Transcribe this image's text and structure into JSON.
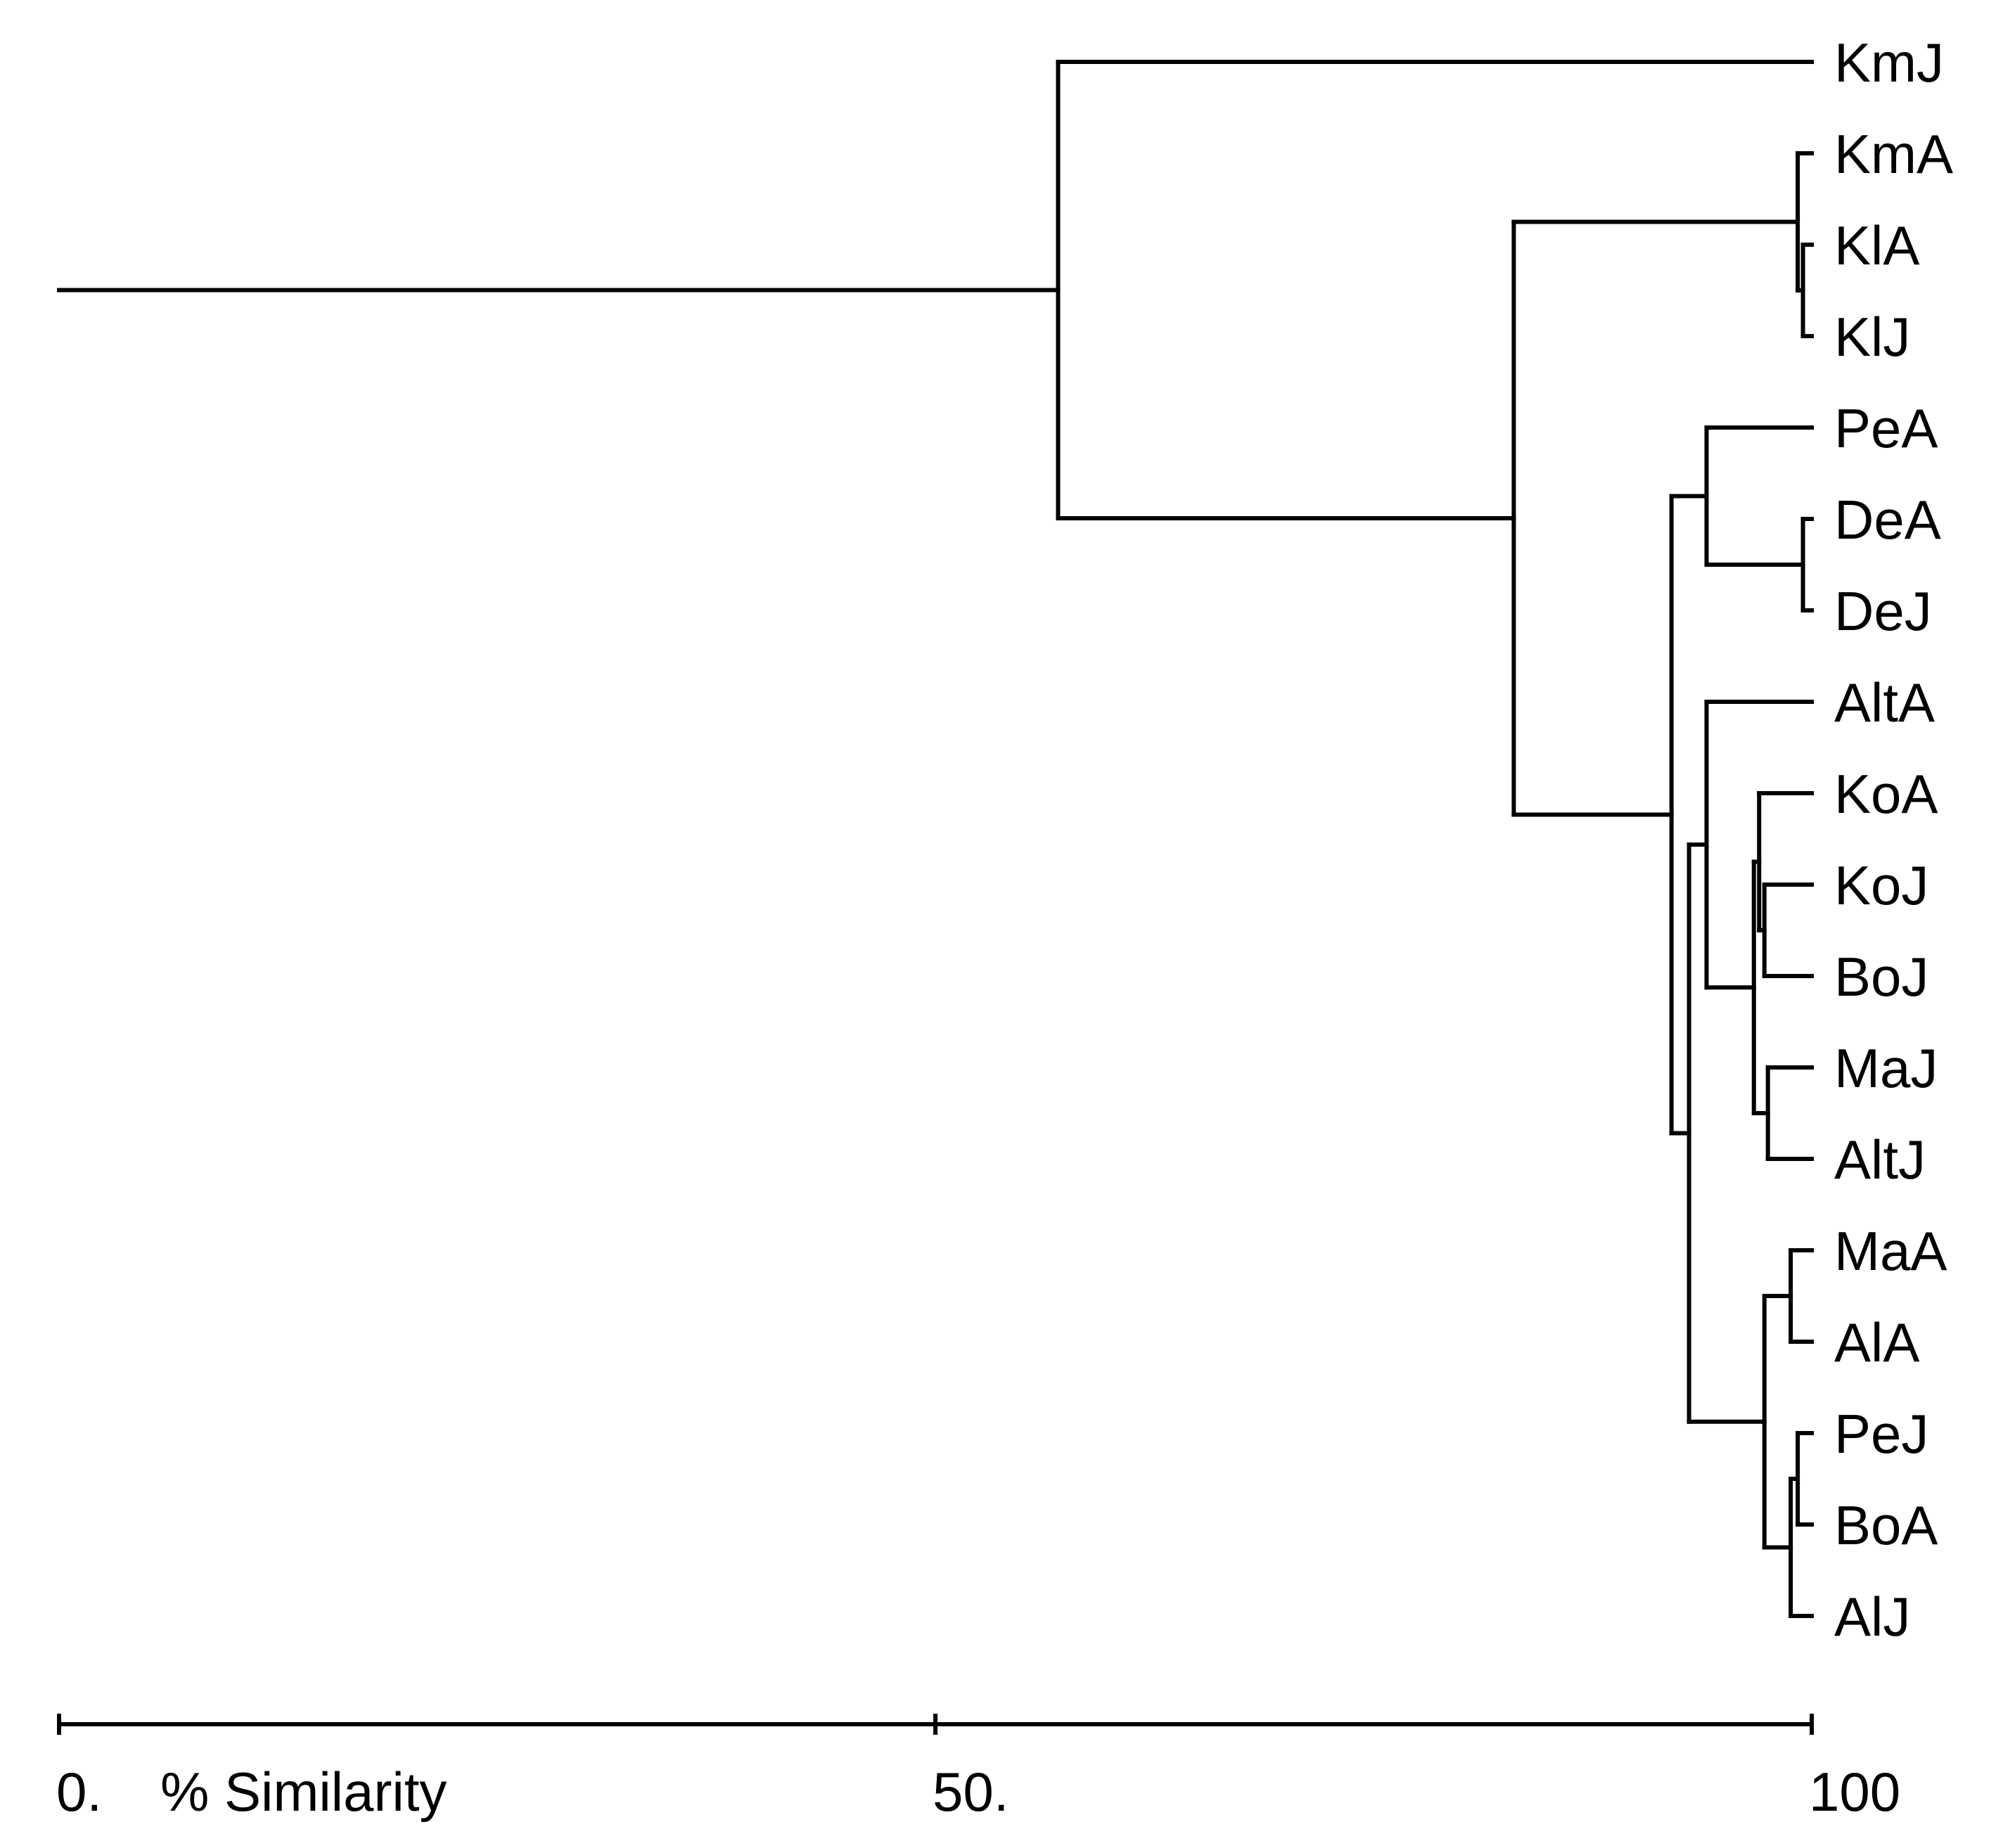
{
  "axis": {
    "label": "% Similarity",
    "ticks": [
      {
        "value": 0,
        "label": "0."
      },
      {
        "value": 50,
        "label": "50."
      },
      {
        "value": 100,
        "label": "100"
      }
    ]
  },
  "leaves": [
    "KmJ",
    "KmA",
    "KlA",
    "KlJ",
    "PeA",
    "DeA",
    "DeJ",
    "AltA",
    "KoA",
    "KoJ",
    "BoJ",
    "MaJ",
    "AltJ",
    "MaA",
    "AlA",
    "PeJ",
    "BoA",
    "AlJ"
  ],
  "tree": {
    "h": 0,
    "children": [
      {
        "h": 57,
        "children": [
          {
            "leaf": "KmJ"
          },
          {
            "h": 83,
            "children": [
              {
                "h": 99.2,
                "children": [
                  {
                    "leaf": "KmA"
                  },
                  {
                    "h": 99.5,
                    "children": [
                      {
                        "leaf": "KlA"
                      },
                      {
                        "leaf": "KlJ"
                      }
                    ]
                  }
                ]
              },
              {
                "h": 92,
                "children": [
                  {
                    "h": 94,
                    "children": [
                      {
                        "leaf": "PeA"
                      },
                      {
                        "h": 99.5,
                        "children": [
                          {
                            "leaf": "DeA"
                          },
                          {
                            "leaf": "DeJ"
                          }
                        ]
                      }
                    ]
                  },
                  {
                    "h": 93,
                    "children": [
                      {
                        "h": 94,
                        "children": [
                          {
                            "leaf": "AltA"
                          },
                          {
                            "h": 96.7,
                            "children": [
                              {
                                "h": 97,
                                "children": [
                                  {
                                    "leaf": "KoA"
                                  },
                                  {
                                    "h": 97.3,
                                    "children": [
                                      {
                                        "leaf": "KoJ"
                                      },
                                      {
                                        "leaf": "BoJ"
                                      }
                                    ]
                                  }
                                ]
                              },
                              {
                                "h": 97.5,
                                "children": [
                                  {
                                    "leaf": "MaJ"
                                  },
                                  {
                                    "leaf": "AltJ"
                                  }
                                ]
                              }
                            ]
                          }
                        ]
                      },
                      {
                        "h": 97.3,
                        "children": [
                          {
                            "h": 98.8,
                            "children": [
                              {
                                "leaf": "MaA"
                              },
                              {
                                "leaf": "AlA"
                              }
                            ]
                          },
                          {
                            "h": 98.8,
                            "children": [
                              {
                                "h": 99.2,
                                "children": [
                                  {
                                    "leaf": "PeJ"
                                  },
                                  {
                                    "leaf": "BoA"
                                  }
                                ]
                              },
                              {
                                "leaf": "AlJ"
                              }
                            ]
                          }
                        ]
                      }
                    ]
                  }
                ]
              }
            ]
          }
        ]
      }
    ]
  }
}
